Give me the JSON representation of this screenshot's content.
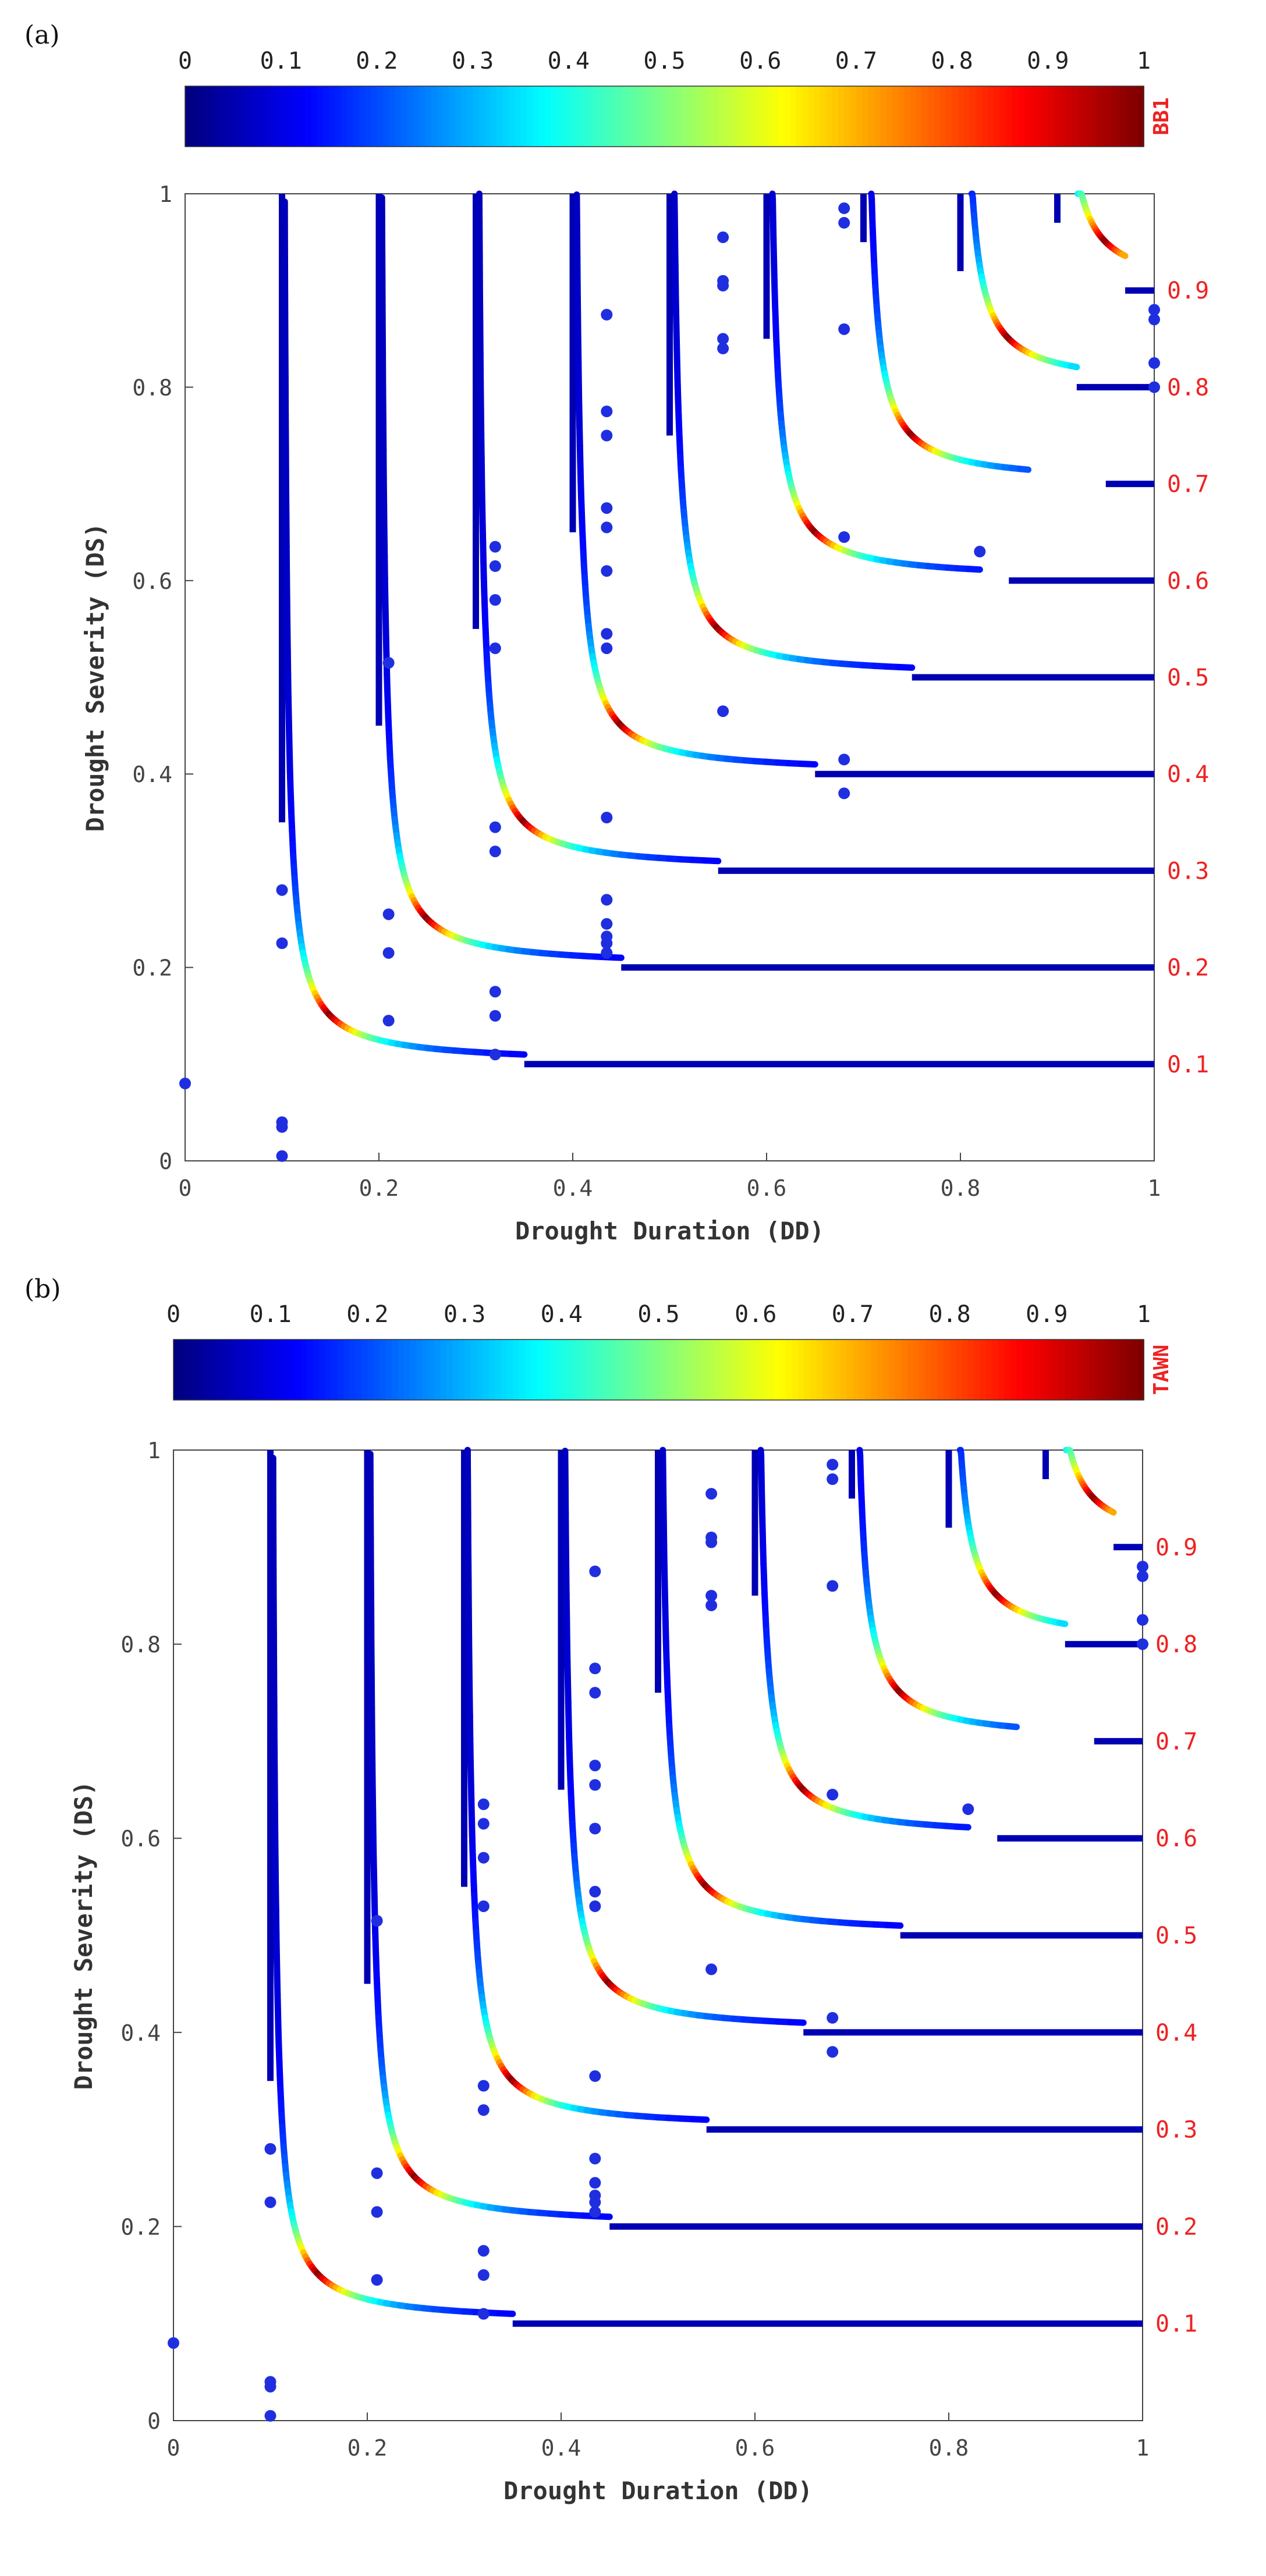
{
  "chart_data": [
    {
      "type": "scatter",
      "panel_label": "(a)",
      "colorbar_label": "BB1",
      "colorbar_ticks": [
        "0",
        "0.1",
        "0.2",
        "0.3",
        "0.4",
        "0.5",
        "0.6",
        "0.7",
        "0.8",
        "0.9",
        "1"
      ],
      "xlabel": "Drought Duration (DD)",
      "ylabel": "Drought Severity (DS)",
      "xlim": [
        0,
        1
      ],
      "ylim": [
        0,
        1
      ],
      "x_ticks": [
        "0",
        "0.2",
        "0.4",
        "0.6",
        "0.8",
        "1"
      ],
      "y_ticks": [
        "0",
        "0.2",
        "0.4",
        "0.6",
        "0.8",
        "1"
      ],
      "contour_levels": [
        "0.1",
        "0.2",
        "0.3",
        "0.4",
        "0.5",
        "0.6",
        "0.7",
        "0.8",
        "0.9"
      ],
      "points": [
        [
          0,
          0.08
        ],
        [
          0.1,
          0.005
        ],
        [
          0.1,
          0.035
        ],
        [
          0.1,
          0.04
        ],
        [
          0.1,
          0.225
        ],
        [
          0.1,
          0.28
        ],
        [
          0.21,
          0.145
        ],
        [
          0.21,
          0.215
        ],
        [
          0.21,
          0.255
        ],
        [
          0.21,
          0.515
        ],
        [
          0.32,
          0.11
        ],
        [
          0.32,
          0.15
        ],
        [
          0.32,
          0.175
        ],
        [
          0.32,
          0.32
        ],
        [
          0.32,
          0.345
        ],
        [
          0.32,
          0.53
        ],
        [
          0.32,
          0.58
        ],
        [
          0.32,
          0.615
        ],
        [
          0.32,
          0.635
        ],
        [
          0.435,
          0.215
        ],
        [
          0.435,
          0.225
        ],
        [
          0.435,
          0.232
        ],
        [
          0.435,
          0.245
        ],
        [
          0.435,
          0.27
        ],
        [
          0.435,
          0.355
        ],
        [
          0.435,
          0.53
        ],
        [
          0.435,
          0.545
        ],
        [
          0.435,
          0.61
        ],
        [
          0.435,
          0.655
        ],
        [
          0.435,
          0.675
        ],
        [
          0.435,
          0.75
        ],
        [
          0.435,
          0.775
        ],
        [
          0.435,
          0.875
        ],
        [
          0.555,
          0.465
        ],
        [
          0.555,
          0.84
        ],
        [
          0.555,
          0.85
        ],
        [
          0.555,
          0.905
        ],
        [
          0.555,
          0.91
        ],
        [
          0.555,
          0.955
        ],
        [
          0.68,
          0.38
        ],
        [
          0.68,
          0.415
        ],
        [
          0.68,
          0.645
        ],
        [
          0.68,
          0.86
        ],
        [
          0.68,
          0.97
        ],
        [
          0.68,
          0.985
        ],
        [
          0.82,
          0.63
        ],
        [
          1.0,
          0.8
        ],
        [
          1.0,
          0.825
        ],
        [
          1.0,
          0.87
        ],
        [
          1.0,
          0.88
        ]
      ]
    },
    {
      "type": "scatter",
      "panel_label": "(b)",
      "colorbar_label": "TAWN",
      "colorbar_ticks": [
        "0",
        "0.1",
        "0.2",
        "0.3",
        "0.4",
        "0.5",
        "0.6",
        "0.7",
        "0.8",
        "0.9",
        "1"
      ],
      "xlabel": "Drought Duration (DD)",
      "ylabel": "Drought Severity (DS)",
      "xlim": [
        0,
        1
      ],
      "ylim": [
        0,
        1
      ],
      "x_ticks": [
        "0",
        "0.2",
        "0.4",
        "0.6",
        "0.8",
        "1"
      ],
      "y_ticks": [
        "0",
        "0.2",
        "0.4",
        "0.6",
        "0.8",
        "1"
      ],
      "contour_levels": [
        "0.1",
        "0.2",
        "0.3",
        "0.4",
        "0.5",
        "0.6",
        "0.7",
        "0.8",
        "0.9"
      ],
      "points": [
        [
          0,
          0.08
        ],
        [
          0.1,
          0.005
        ],
        [
          0.1,
          0.035
        ],
        [
          0.1,
          0.04
        ],
        [
          0.1,
          0.225
        ],
        [
          0.1,
          0.28
        ],
        [
          0.21,
          0.145
        ],
        [
          0.21,
          0.215
        ],
        [
          0.21,
          0.255
        ],
        [
          0.21,
          0.515
        ],
        [
          0.32,
          0.11
        ],
        [
          0.32,
          0.15
        ],
        [
          0.32,
          0.175
        ],
        [
          0.32,
          0.32
        ],
        [
          0.32,
          0.345
        ],
        [
          0.32,
          0.53
        ],
        [
          0.32,
          0.58
        ],
        [
          0.32,
          0.615
        ],
        [
          0.32,
          0.635
        ],
        [
          0.435,
          0.215
        ],
        [
          0.435,
          0.225
        ],
        [
          0.435,
          0.232
        ],
        [
          0.435,
          0.245
        ],
        [
          0.435,
          0.27
        ],
        [
          0.435,
          0.355
        ],
        [
          0.435,
          0.53
        ],
        [
          0.435,
          0.545
        ],
        [
          0.435,
          0.61
        ],
        [
          0.435,
          0.655
        ],
        [
          0.435,
          0.675
        ],
        [
          0.435,
          0.75
        ],
        [
          0.435,
          0.775
        ],
        [
          0.435,
          0.875
        ],
        [
          0.555,
          0.465
        ],
        [
          0.555,
          0.84
        ],
        [
          0.555,
          0.85
        ],
        [
          0.555,
          0.905
        ],
        [
          0.555,
          0.91
        ],
        [
          0.555,
          0.955
        ],
        [
          0.68,
          0.38
        ],
        [
          0.68,
          0.415
        ],
        [
          0.68,
          0.645
        ],
        [
          0.68,
          0.86
        ],
        [
          0.68,
          0.97
        ],
        [
          0.68,
          0.985
        ],
        [
          0.82,
          0.63
        ],
        [
          1.0,
          0.8
        ],
        [
          1.0,
          0.825
        ],
        [
          1.0,
          0.87
        ],
        [
          1.0,
          0.88
        ]
      ]
    }
  ]
}
